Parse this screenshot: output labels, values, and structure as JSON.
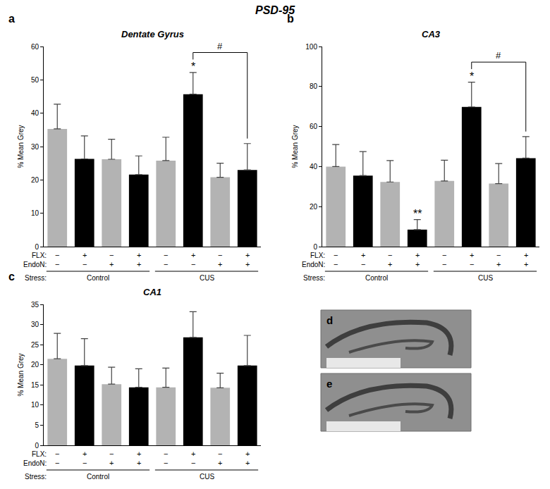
{
  "title": "PSD-95",
  "chart_data": [
    {
      "type": "bar",
      "panel": "a",
      "title": "Dentate Gyrus",
      "y_label": "% Mean Grey",
      "categories": [
        null,
        null,
        null,
        null,
        null,
        null,
        null,
        null
      ],
      "values": [
        35.3,
        26.3,
        26.2,
        21.6,
        25.8,
        45.7,
        20.8,
        23.0
      ],
      "errors": [
        7.4,
        6.9,
        6.0,
        5.6,
        7.0,
        6.5,
        4.2,
        7.9
      ],
      "colors": [
        "#b3b3b3",
        "#000000",
        "#b3b3b3",
        "#000000",
        "#b3b3b3",
        "#000000",
        "#b3b3b3",
        "#000000"
      ],
      "ylim": [
        0,
        60
      ],
      "yticks": [
        0,
        10,
        20,
        30,
        40,
        50,
        60
      ],
      "grid": false,
      "tick_labels": "y",
      "x_table": {
        "rows": [
          {
            "label": "FLX:",
            "cells": [
              "−",
              "+",
              "−",
              "+",
              "−",
              "+",
              "−",
              "+"
            ]
          },
          {
            "label": "EndoN:",
            "cells": [
              "−",
              "−",
              "+",
              "+",
              "−",
              "−",
              "+",
              "+"
            ]
          }
        ],
        "group_label": "Stress:",
        "groups": [
          {
            "label": "Control",
            "from": 0,
            "to": 3
          },
          {
            "label": "CUS",
            "from": 4,
            "to": 7
          }
        ]
      },
      "significance": [
        {
          "text": "*",
          "at": 5
        }
      ],
      "brackets": [
        {
          "text": "#",
          "from": 5,
          "to": 7
        }
      ]
    },
    {
      "type": "bar",
      "panel": "b",
      "title": "CA3",
      "y_label": "% Mean Grey",
      "categories": [
        null,
        null,
        null,
        null,
        null,
        null,
        null,
        null
      ],
      "values": [
        40.0,
        35.5,
        32.3,
        8.5,
        32.8,
        69.8,
        31.5,
        44.2
      ],
      "errors": [
        11.0,
        12.0,
        10.7,
        5.0,
        10.4,
        12.4,
        10.0,
        10.8
      ],
      "colors": [
        "#b3b3b3",
        "#000000",
        "#b3b3b3",
        "#000000",
        "#b3b3b3",
        "#000000",
        "#b3b3b3",
        "#000000"
      ],
      "ylim": [
        0,
        100
      ],
      "yticks": [
        0,
        20,
        40,
        60,
        80,
        100
      ],
      "grid": false,
      "tick_labels": "y",
      "x_table": {
        "rows": [
          {
            "label": "FLX:",
            "cells": [
              "−",
              "+",
              "−",
              "+",
              "−",
              "+",
              "−",
              "+"
            ]
          },
          {
            "label": "EndoN:",
            "cells": [
              "−",
              "−",
              "+",
              "+",
              "−",
              "−",
              "+",
              "+"
            ]
          }
        ],
        "group_label": "Stress:",
        "groups": [
          {
            "label": "Control",
            "from": 0,
            "to": 3
          },
          {
            "label": "CUS",
            "from": 4,
            "to": 7
          }
        ]
      },
      "significance": [
        {
          "text": "**",
          "at": 3
        },
        {
          "text": "*",
          "at": 5
        }
      ],
      "brackets": [
        {
          "text": "#",
          "from": 5,
          "to": 7
        }
      ]
    },
    {
      "type": "bar",
      "panel": "c",
      "title": "CA1",
      "y_label": "% Mean Grey",
      "categories": [
        null,
        null,
        null,
        null,
        null,
        null,
        null,
        null
      ],
      "values": [
        21.5,
        19.8,
        15.2,
        14.4,
        14.4,
        26.8,
        14.3,
        19.8
      ],
      "errors": [
        6.3,
        6.7,
        4.2,
        4.6,
        4.8,
        6.4,
        3.6,
        7.5
      ],
      "colors": [
        "#b3b3b3",
        "#000000",
        "#b3b3b3",
        "#000000",
        "#b3b3b3",
        "#000000",
        "#b3b3b3",
        "#000000"
      ],
      "ylim": [
        0,
        35
      ],
      "yticks": [
        0,
        5,
        10,
        15,
        20,
        25,
        30,
        35
      ],
      "grid": false,
      "tick_labels": "y",
      "x_table": {
        "rows": [
          {
            "label": "FLX:",
            "cells": [
              "−",
              "+",
              "−",
              "+",
              "−",
              "+",
              "−",
              "+"
            ]
          },
          {
            "label": "EndoN:",
            "cells": [
              "−",
              "−",
              "+",
              "+",
              "−",
              "−",
              "+",
              "+"
            ]
          }
        ],
        "group_label": "Stress:",
        "groups": [
          {
            "label": "Control",
            "from": 0,
            "to": 3
          },
          {
            "label": "CUS",
            "from": 4,
            "to": 7
          }
        ]
      },
      "significance": [],
      "brackets": []
    }
  ],
  "images": [
    {
      "panel": "d"
    },
    {
      "panel": "e"
    }
  ]
}
